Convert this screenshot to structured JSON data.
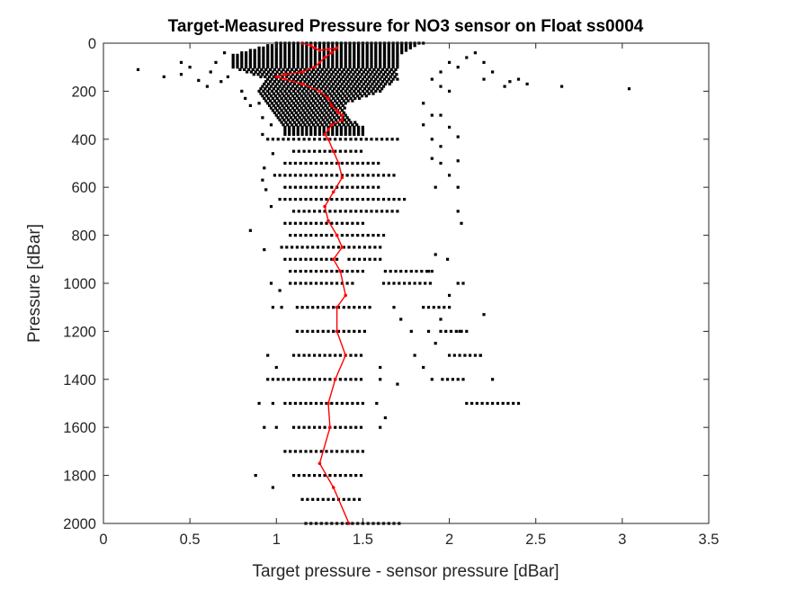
{
  "chart_data": {
    "type": "scatter",
    "title": "Target-Measured Pressure for NO3 sensor on Float ss0004",
    "xlabel": "Target pressure - sensor pressure [dBar]",
    "ylabel": "Pressure [dBar]",
    "xlim": [
      0,
      3.5
    ],
    "ylim": [
      2000,
      0
    ],
    "y_reversed": true,
    "grid": false,
    "legend": "none",
    "colors": {
      "scatter": "#000000",
      "mean_line": "#ff0000",
      "axes": "#262626"
    },
    "x_ticks": [
      0,
      0.5,
      1,
      1.5,
      2,
      2.5,
      3,
      3.5
    ],
    "x_tick_labels": [
      "0",
      "0.5",
      "1",
      "1.5",
      "2",
      "2.5",
      "3",
      "3.5"
    ],
    "y_ticks": [
      0,
      200,
      400,
      600,
      800,
      1000,
      1200,
      1400,
      1600,
      1800,
      2000
    ],
    "y_tick_labels": [
      "0",
      "200",
      "400",
      "600",
      "800",
      "1000",
      "1200",
      "1400",
      "1600",
      "1800",
      "2000"
    ],
    "dense_region": {
      "p_range": [
        0,
        380
      ],
      "p_step": 10,
      "x_step": 0.025,
      "x_bounds": [
        [
          0,
          1.0,
          1.85
        ],
        [
          50,
          0.75,
          1.7
        ],
        [
          100,
          0.75,
          1.7
        ],
        [
          150,
          0.95,
          1.7
        ],
        [
          200,
          0.9,
          1.6
        ],
        [
          250,
          0.95,
          1.4
        ],
        [
          300,
          1.0,
          1.4
        ],
        [
          350,
          1.05,
          1.5
        ],
        [
          380,
          1.05,
          1.5
        ]
      ]
    },
    "sparse_rows": [
      {
        "p": 400,
        "segments": [
          [
            0.95,
            1.7
          ]
        ]
      },
      {
        "p": 450,
        "segments": [
          [
            1.1,
            1.5
          ]
        ]
      },
      {
        "p": 500,
        "segments": [
          [
            1.05,
            1.6
          ]
        ]
      },
      {
        "p": 550,
        "segments": [
          [
            0.99,
            1.7
          ]
        ]
      },
      {
        "p": 600,
        "segments": [
          [
            1.05,
            1.6
          ]
        ]
      },
      {
        "p": 650,
        "segments": [
          [
            1.02,
            1.74
          ]
        ]
      },
      {
        "p": 700,
        "segments": [
          [
            1.1,
            1.72
          ]
        ]
      },
      {
        "p": 750,
        "segments": [
          [
            1.05,
            1.5
          ]
        ]
      },
      {
        "p": 800,
        "segments": [
          [
            1.08,
            1.63
          ]
        ]
      },
      {
        "p": 850,
        "segments": [
          [
            1.03,
            1.62
          ]
        ]
      },
      {
        "p": 900,
        "segments": [
          [
            1.05,
            1.35
          ],
          [
            1.42,
            1.62
          ]
        ]
      },
      {
        "p": 950,
        "segments": [
          [
            1.08,
            1.5
          ],
          [
            1.63,
            1.92
          ]
        ]
      },
      {
        "p": 1000,
        "segments": [
          [
            1.08,
            1.45
          ],
          [
            1.62,
            1.9
          ]
        ]
      },
      {
        "p": 1100,
        "segments": [
          [
            1.12,
            1.55
          ],
          [
            1.85,
            2.0
          ]
        ]
      },
      {
        "p": 1200,
        "segments": [
          [
            1.12,
            1.52
          ],
          [
            1.95,
            2.1
          ]
        ]
      },
      {
        "p": 1300,
        "segments": [
          [
            1.1,
            1.5
          ],
          [
            2.0,
            2.2
          ]
        ]
      },
      {
        "p": 1400,
        "segments": [
          [
            0.95,
            1.5
          ],
          [
            1.96,
            2.1
          ]
        ]
      },
      {
        "p": 1500,
        "segments": [
          [
            1.05,
            1.52
          ],
          [
            2.1,
            2.4
          ]
        ]
      },
      {
        "p": 1600,
        "segments": [
          [
            1.1,
            1.5
          ]
        ]
      },
      {
        "p": 1700,
        "segments": [
          [
            1.05,
            1.5
          ]
        ]
      },
      {
        "p": 1800,
        "segments": [
          [
            1.1,
            1.5
          ]
        ]
      },
      {
        "p": 1900,
        "segments": [
          [
            1.15,
            1.5
          ]
        ]
      },
      {
        "p": 2000,
        "segments": [
          [
            1.17,
            1.72
          ]
        ]
      }
    ],
    "outliers": [
      [
        0.2,
        110
      ],
      [
        0.35,
        140
      ],
      [
        0.45,
        130
      ],
      [
        0.45,
        80
      ],
      [
        0.5,
        100
      ],
      [
        0.55,
        155
      ],
      [
        0.6,
        180
      ],
      [
        0.62,
        120
      ],
      [
        0.65,
        80
      ],
      [
        0.68,
        160
      ],
      [
        0.7,
        40
      ],
      [
        0.72,
        140
      ],
      [
        0.8,
        200
      ],
      [
        0.82,
        230
      ],
      [
        0.85,
        260
      ],
      [
        0.9,
        250
      ],
      [
        0.92,
        310
      ],
      [
        0.97,
        340
      ],
      [
        0.92,
        380
      ],
      [
        1.85,
        250
      ],
      [
        1.9,
        300
      ],
      [
        1.85,
        340
      ],
      [
        1.95,
        180
      ],
      [
        1.9,
        150
      ],
      [
        1.95,
        120
      ],
      [
        2.0,
        200
      ],
      [
        2.05,
        100
      ],
      [
        2.0,
        80
      ],
      [
        2.1,
        60
      ],
      [
        2.15,
        40
      ],
      [
        2.2,
        80
      ],
      [
        2.25,
        120
      ],
      [
        2.2,
        150
      ],
      [
        2.35,
        160
      ],
      [
        2.4,
        150
      ],
      [
        2.32,
        180
      ],
      [
        2.45,
        170
      ],
      [
        2.65,
        180
      ],
      [
        3.04,
        190
      ],
      [
        1.95,
        300
      ],
      [
        2.0,
        350
      ],
      [
        2.05,
        390
      ],
      [
        1.9,
        400
      ],
      [
        1.95,
        430
      ],
      [
        1.9,
        480
      ],
      [
        1.95,
        500
      ],
      [
        2.05,
        490
      ],
      [
        2.0,
        550
      ],
      [
        2.05,
        600
      ],
      [
        1.92,
        600
      ],
      [
        2.05,
        700
      ],
      [
        2.07,
        750
      ],
      [
        0.93,
        520
      ],
      [
        0.98,
        460
      ],
      [
        0.92,
        570
      ],
      [
        0.94,
        610
      ],
      [
        0.97,
        680
      ],
      [
        0.85,
        780
      ],
      [
        0.93,
        860
      ],
      [
        1.92,
        880
      ],
      [
        1.99,
        900
      ],
      [
        1.88,
        950
      ],
      [
        2.05,
        1000
      ],
      [
        2.08,
        1000
      ],
      [
        2.0,
        1050
      ],
      [
        0.97,
        1000
      ],
      [
        1.02,
        1030
      ],
      [
        0.98,
        1100
      ],
      [
        1.03,
        1100
      ],
      [
        1.68,
        1100
      ],
      [
        1.72,
        1150
      ],
      [
        2.2,
        1130
      ],
      [
        1.95,
        1150
      ],
      [
        1.78,
        1200
      ],
      [
        1.88,
        1200
      ],
      [
        1.92,
        1250
      ],
      [
        2.06,
        1200
      ],
      [
        2.18,
        1300
      ],
      [
        0.95,
        1300
      ],
      [
        1.0,
        1350
      ],
      [
        1.6,
        1350
      ],
      [
        1.8,
        1300
      ],
      [
        1.85,
        1350
      ],
      [
        1.9,
        1400
      ],
      [
        1.6,
        1400
      ],
      [
        1.7,
        1420
      ],
      [
        2.25,
        1400
      ],
      [
        0.9,
        1500
      ],
      [
        0.98,
        1500
      ],
      [
        1.58,
        1500
      ],
      [
        1.63,
        1560
      ],
      [
        0.93,
        1600
      ],
      [
        1.0,
        1600
      ],
      [
        1.6,
        1600
      ],
      [
        0.88,
        1800
      ],
      [
        0.98,
        1850
      ]
    ],
    "mean_line": {
      "x": [
        1.15,
        1.2,
        1.22,
        1.25,
        1.3,
        1.35,
        1.32,
        1.28,
        1.25,
        1.22,
        1.15,
        1.05,
        1.0,
        1.05,
        1.15,
        1.25,
        1.3,
        1.32,
        1.35,
        1.36,
        1.38,
        1.38,
        1.32,
        1.3,
        1.28,
        1.3,
        1.33,
        1.36,
        1.38,
        1.33,
        1.28,
        1.3,
        1.35,
        1.38,
        1.33,
        1.37,
        1.4,
        1.35,
        1.35,
        1.4,
        1.34,
        1.3,
        1.31,
        1.25,
        1.33,
        1.42
      ],
      "y": [
        0,
        10,
        20,
        30,
        25,
        20,
        40,
        60,
        80,
        100,
        120,
        130,
        140,
        150,
        170,
        200,
        230,
        260,
        280,
        290,
        300,
        320,
        340,
        360,
        380,
        400,
        450,
        500,
        560,
        620,
        680,
        740,
        800,
        850,
        900,
        950,
        1050,
        1100,
        1200,
        1300,
        1400,
        1500,
        1600,
        1750,
        1850,
        2000
      ]
    }
  }
}
